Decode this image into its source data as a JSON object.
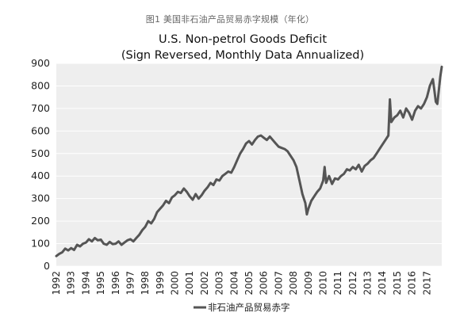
{
  "caption": "图1 美国非石油产品贸易赤字规模（年化）",
  "chart_data": {
    "type": "line",
    "title_line1": "U.S. Non-petrol Goods Deficit",
    "title_line2": "(Sign Reversed, Monthly Data Annualized)",
    "xlabel": "",
    "ylabel": "",
    "x_categories": [
      "1992",
      "1993",
      "1994",
      "1995",
      "1996",
      "1997",
      "1998",
      "1999",
      "2000",
      "2001",
      "2002",
      "2003",
      "2004",
      "2005",
      "2006",
      "2007",
      "2008",
      "2009",
      "2010",
      "2011",
      "2012",
      "2013",
      "2014",
      "2015",
      "2016",
      "2017"
    ],
    "y_ticks": [
      0,
      100,
      200,
      300,
      400,
      500,
      600,
      700,
      800,
      900
    ],
    "ylim": [
      0,
      900
    ],
    "grid": "horizontal",
    "legend_position": "bottom",
    "series": [
      {
        "name": "非石油产品贸易赤字",
        "color": "#555555",
        "values": [
          [
            1992.0,
            45
          ],
          [
            1992.2,
            55
          ],
          [
            1992.4,
            62
          ],
          [
            1992.6,
            78
          ],
          [
            1992.8,
            70
          ],
          [
            1993.0,
            80
          ],
          [
            1993.2,
            72
          ],
          [
            1993.4,
            95
          ],
          [
            1993.6,
            88
          ],
          [
            1993.8,
            100
          ],
          [
            1994.0,
            105
          ],
          [
            1994.2,
            120
          ],
          [
            1994.4,
            110
          ],
          [
            1994.6,
            125
          ],
          [
            1994.8,
            115
          ],
          [
            1995.0,
            118
          ],
          [
            1995.2,
            100
          ],
          [
            1995.4,
            95
          ],
          [
            1995.6,
            108
          ],
          [
            1995.8,
            98
          ],
          [
            1996.0,
            100
          ],
          [
            1996.2,
            110
          ],
          [
            1996.4,
            95
          ],
          [
            1996.6,
            105
          ],
          [
            1996.8,
            115
          ],
          [
            1997.0,
            120
          ],
          [
            1997.2,
            110
          ],
          [
            1997.4,
            125
          ],
          [
            1997.6,
            140
          ],
          [
            1997.8,
            160
          ],
          [
            1998.0,
            175
          ],
          [
            1998.2,
            200
          ],
          [
            1998.4,
            190
          ],
          [
            1998.6,
            210
          ],
          [
            1998.8,
            240
          ],
          [
            1999.0,
            255
          ],
          [
            1999.2,
            270
          ],
          [
            1999.4,
            290
          ],
          [
            1999.6,
            280
          ],
          [
            1999.8,
            305
          ],
          [
            2000.0,
            315
          ],
          [
            2000.2,
            330
          ],
          [
            2000.4,
            325
          ],
          [
            2000.6,
            345
          ],
          [
            2000.8,
            330
          ],
          [
            2001.0,
            310
          ],
          [
            2001.2,
            295
          ],
          [
            2001.4,
            320
          ],
          [
            2001.6,
            300
          ],
          [
            2001.8,
            315
          ],
          [
            2002.0,
            335
          ],
          [
            2002.2,
            350
          ],
          [
            2002.4,
            370
          ],
          [
            2002.6,
            360
          ],
          [
            2002.8,
            385
          ],
          [
            2003.0,
            380
          ],
          [
            2003.2,
            400
          ],
          [
            2003.4,
            410
          ],
          [
            2003.6,
            420
          ],
          [
            2003.8,
            415
          ],
          [
            2004.0,
            440
          ],
          [
            2004.2,
            470
          ],
          [
            2004.4,
            500
          ],
          [
            2004.6,
            520
          ],
          [
            2004.8,
            545
          ],
          [
            2005.0,
            555
          ],
          [
            2005.2,
            540
          ],
          [
            2005.4,
            560
          ],
          [
            2005.6,
            575
          ],
          [
            2005.8,
            580
          ],
          [
            2006.0,
            570
          ],
          [
            2006.2,
            560
          ],
          [
            2006.4,
            575
          ],
          [
            2006.6,
            560
          ],
          [
            2006.8,
            545
          ],
          [
            2007.0,
            530
          ],
          [
            2007.2,
            525
          ],
          [
            2007.4,
            520
          ],
          [
            2007.6,
            510
          ],
          [
            2007.8,
            490
          ],
          [
            2008.0,
            470
          ],
          [
            2008.2,
            440
          ],
          [
            2008.4,
            380
          ],
          [
            2008.6,
            320
          ],
          [
            2008.8,
            280
          ],
          [
            2008.9,
            230
          ],
          [
            2009.0,
            255
          ],
          [
            2009.2,
            290
          ],
          [
            2009.4,
            310
          ],
          [
            2009.6,
            330
          ],
          [
            2009.8,
            345
          ],
          [
            2010.0,
            380
          ],
          [
            2010.1,
            440
          ],
          [
            2010.2,
            370
          ],
          [
            2010.4,
            400
          ],
          [
            2010.6,
            365
          ],
          [
            2010.8,
            390
          ],
          [
            2011.0,
            385
          ],
          [
            2011.2,
            400
          ],
          [
            2011.4,
            410
          ],
          [
            2011.6,
            430
          ],
          [
            2011.8,
            425
          ],
          [
            2012.0,
            440
          ],
          [
            2012.2,
            430
          ],
          [
            2012.4,
            450
          ],
          [
            2012.6,
            420
          ],
          [
            2012.8,
            445
          ],
          [
            2013.0,
            455
          ],
          [
            2013.2,
            470
          ],
          [
            2013.4,
            480
          ],
          [
            2013.6,
            500
          ],
          [
            2013.8,
            520
          ],
          [
            2014.0,
            540
          ],
          [
            2014.2,
            560
          ],
          [
            2014.4,
            580
          ],
          [
            2014.5,
            740
          ],
          [
            2014.6,
            640
          ],
          [
            2014.8,
            660
          ],
          [
            2015.0,
            670
          ],
          [
            2015.2,
            690
          ],
          [
            2015.4,
            660
          ],
          [
            2015.6,
            700
          ],
          [
            2015.8,
            680
          ],
          [
            2016.0,
            650
          ],
          [
            2016.2,
            690
          ],
          [
            2016.4,
            710
          ],
          [
            2016.6,
            700
          ],
          [
            2016.8,
            720
          ],
          [
            2017.0,
            750
          ],
          [
            2017.2,
            800
          ],
          [
            2017.4,
            830
          ],
          [
            2017.5,
            780
          ],
          [
            2017.6,
            730
          ],
          [
            2017.7,
            720
          ],
          [
            2017.8,
            780
          ],
          [
            2017.9,
            840
          ],
          [
            2018.0,
            885
          ]
        ]
      }
    ]
  }
}
